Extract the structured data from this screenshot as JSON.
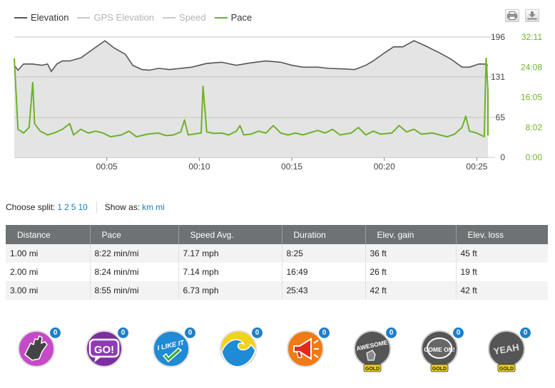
{
  "legend": [
    {
      "label": "Elevation",
      "key": "elev"
    },
    {
      "label": "GPS Elevation",
      "key": "gps"
    },
    {
      "label": "Speed",
      "key": "speed"
    },
    {
      "label": "Pace",
      "key": "pace"
    }
  ],
  "toolbar": {
    "print_icon": "print-icon",
    "download_icon": "download-icon"
  },
  "chart_data": {
    "type": "line",
    "x_ticks": [
      "00:05",
      "00:10",
      "00:15",
      "00:20",
      "00:25"
    ],
    "x_tick_values": [
      5,
      10,
      15,
      20,
      25
    ],
    "xlim": [
      0,
      25.6
    ],
    "y_left_ticks": [
      "0",
      "65",
      "131",
      "196"
    ],
    "y_left_values": [
      0,
      65,
      131,
      196
    ],
    "ylim_left": [
      0,
      196
    ],
    "y_right_ticks": [
      "0:00",
      "8:02",
      "16:05",
      "24:08",
      "32:11"
    ],
    "y_right_values_min": [
      0,
      8.03,
      16.08,
      24.13,
      32.18
    ],
    "ylim_right_min": [
      0,
      32.18
    ],
    "series": [
      {
        "name": "Elevation",
        "color": "#555555",
        "axis": "left",
        "points": [
          [
            0,
            150
          ],
          [
            0.2,
            142
          ],
          [
            0.5,
            152
          ],
          [
            1,
            152
          ],
          [
            1.5,
            150
          ],
          [
            1.8,
            152
          ],
          [
            2,
            140
          ],
          [
            2.3,
            152
          ],
          [
            2.6,
            157
          ],
          [
            3,
            157
          ],
          [
            3.6,
            162
          ],
          [
            4.2,
            175
          ],
          [
            4.9,
            190
          ],
          [
            5.4,
            178
          ],
          [
            6,
            168
          ],
          [
            6.4,
            150
          ],
          [
            6.9,
            143
          ],
          [
            7.3,
            142
          ],
          [
            7.8,
            145
          ],
          [
            8.4,
            143
          ],
          [
            9,
            145
          ],
          [
            9.6,
            147
          ],
          [
            10.4,
            153
          ],
          [
            11.2,
            155
          ],
          [
            12,
            150
          ],
          [
            12.8,
            154
          ],
          [
            13.6,
            157
          ],
          [
            14.4,
            155
          ],
          [
            15,
            150
          ],
          [
            15.6,
            147
          ],
          [
            16.4,
            147
          ],
          [
            17,
            145
          ],
          [
            17.8,
            144
          ],
          [
            18.4,
            143
          ],
          [
            19,
            150
          ],
          [
            19.4,
            157
          ],
          [
            20,
            170
          ],
          [
            20.5,
            180
          ],
          [
            21,
            180
          ],
          [
            21.6,
            190
          ],
          [
            22.2,
            182
          ],
          [
            23,
            170
          ],
          [
            23.6,
            160
          ],
          [
            24.2,
            147
          ],
          [
            24.6,
            147
          ],
          [
            24.9,
            150
          ],
          [
            25.1,
            152
          ],
          [
            25.4,
            152
          ],
          [
            25.6,
            150
          ]
        ]
      },
      {
        "name": "Pace",
        "color": "#6db22b",
        "axis": "right",
        "points": [
          [
            0,
            26.5
          ],
          [
            0.2,
            7.5
          ],
          [
            0.5,
            6.5
          ],
          [
            0.8,
            8
          ],
          [
            1,
            20
          ],
          [
            1.1,
            9
          ],
          [
            1.4,
            7
          ],
          [
            1.8,
            6
          ],
          [
            2.2,
            6.6
          ],
          [
            2.6,
            7.5
          ],
          [
            3,
            9
          ],
          [
            3.2,
            6
          ],
          [
            3.6,
            7.5
          ],
          [
            4,
            6.5
          ],
          [
            4.4,
            7
          ],
          [
            4.8,
            6.5
          ],
          [
            5.2,
            5.5
          ],
          [
            5.8,
            6
          ],
          [
            6.2,
            7
          ],
          [
            6.6,
            5.5
          ],
          [
            7.2,
            6.2
          ],
          [
            7.8,
            6.5
          ],
          [
            8.2,
            5.8
          ],
          [
            8.6,
            6
          ],
          [
            9,
            6.8
          ],
          [
            9.2,
            10
          ],
          [
            9.4,
            6
          ],
          [
            9.8,
            6.3
          ],
          [
            10.1,
            6.5
          ],
          [
            10.2,
            19
          ],
          [
            10.4,
            6.8
          ],
          [
            10.8,
            6.4
          ],
          [
            11.2,
            6.5
          ],
          [
            11.6,
            6
          ],
          [
            12,
            7
          ],
          [
            12.2,
            8.5
          ],
          [
            12.4,
            6
          ],
          [
            12.8,
            6.2
          ],
          [
            13.2,
            7
          ],
          [
            13.6,
            6.5
          ],
          [
            14,
            8.5
          ],
          [
            14.4,
            6.5
          ],
          [
            14.8,
            6
          ],
          [
            15.2,
            6.5
          ],
          [
            15.6,
            6
          ],
          [
            16.4,
            7.2
          ],
          [
            16.8,
            6.5
          ],
          [
            17.2,
            7.5
          ],
          [
            17.6,
            6
          ],
          [
            18.2,
            6.5
          ],
          [
            18.6,
            8
          ],
          [
            19,
            6
          ],
          [
            19.4,
            7
          ],
          [
            19.8,
            6.2
          ],
          [
            20.4,
            6.5
          ],
          [
            20.8,
            8.5
          ],
          [
            21.2,
            6.8
          ],
          [
            21.6,
            7.5
          ],
          [
            22,
            6.2
          ],
          [
            22.6,
            6.5
          ],
          [
            23,
            6
          ],
          [
            23.4,
            5.5
          ],
          [
            23.8,
            6.2
          ],
          [
            24.2,
            8
          ],
          [
            24.4,
            11
          ],
          [
            24.6,
            7
          ],
          [
            25,
            6.5
          ],
          [
            25.2,
            6
          ],
          [
            25.4,
            5.5
          ],
          [
            25.5,
            26.5
          ],
          [
            25.6,
            18
          ],
          [
            25.8,
            6
          ],
          [
            26,
            10
          ],
          [
            26.2,
            9
          ]
        ]
      }
    ]
  },
  "controls": {
    "choose_split_label": "Choose split:",
    "split_options": [
      "1",
      "2",
      "5",
      "10"
    ],
    "show_as_label": "Show as:",
    "unit_options": [
      "km",
      "mi"
    ]
  },
  "table": {
    "headers": [
      "Distance",
      "Pace",
      "Speed Avg.",
      "Duration",
      "Elev. gain",
      "Elev. loss"
    ],
    "rows": [
      [
        "1.00 mi",
        "8:22 min/mi",
        "7.17 mph",
        "8:25",
        "36 ft",
        "45 ft"
      ],
      [
        "2.00 mi",
        "8:24 min/mi",
        "7.14 mph",
        "16:49",
        "26 ft",
        "19 ft"
      ],
      [
        "3.00 mi",
        "8:55 min/mi",
        "6.73 mph",
        "25:43",
        "42 ft",
        "42 ft"
      ]
    ]
  },
  "badges": [
    {
      "icon": "high-five-badge-icon",
      "count": "0"
    },
    {
      "icon": "go-badge-icon",
      "count": "0",
      "text": "GO!"
    },
    {
      "icon": "i-like-it-badge-icon",
      "count": "0",
      "text": "I LIKE IT"
    },
    {
      "icon": "wave-badge-icon",
      "count": "0"
    },
    {
      "icon": "megaphone-badge-icon",
      "count": "0"
    },
    {
      "icon": "awesome-badge-icon",
      "count": "0",
      "text": "AWESOME",
      "tag": "GOLD"
    },
    {
      "icon": "come-on-badge-icon",
      "count": "0",
      "text": "COME ON!",
      "tag": "GOLD"
    },
    {
      "icon": "yeah-badge-icon",
      "count": "0",
      "text": "YEAH",
      "tag": "GOLD"
    }
  ]
}
